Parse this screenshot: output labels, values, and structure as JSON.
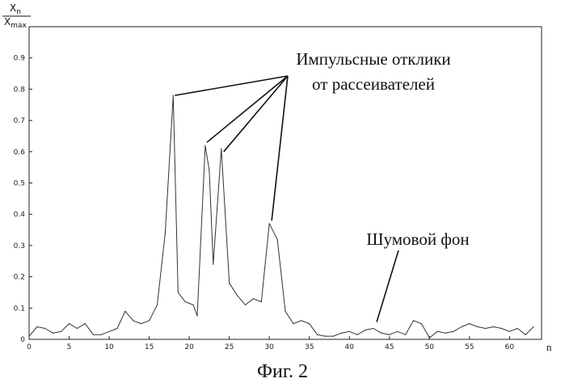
{
  "chart_data": {
    "type": "line",
    "title": "",
    "xlabel": "n",
    "ylabel_numerator": "X",
    "ylabel_numerator_sub": "n",
    "ylabel_denominator": "X",
    "ylabel_denominator_sub": "max",
    "xlim": [
      0,
      64
    ],
    "ylim": [
      0,
      1
    ],
    "grid": false,
    "x_ticks": [
      0,
      5,
      10,
      15,
      20,
      25,
      30,
      35,
      40,
      45,
      50,
      55,
      60
    ],
    "y_ticks": [
      0,
      0.1,
      0.2,
      0.3,
      0.4,
      0.5,
      0.6,
      0.7,
      0.8,
      0.9
    ],
    "series": [
      {
        "values": [
          [
            0,
            0.01
          ],
          [
            1,
            0.04
          ],
          [
            2,
            0.035
          ],
          [
            3,
            0.02
          ],
          [
            4,
            0.025
          ],
          [
            5,
            0.05
          ],
          [
            6,
            0.035
          ],
          [
            7,
            0.05
          ],
          [
            8,
            0.015
          ],
          [
            9,
            0.015
          ],
          [
            10,
            0.025
          ],
          [
            11,
            0.035
          ],
          [
            12,
            0.09
          ],
          [
            13,
            0.06
          ],
          [
            14,
            0.05
          ],
          [
            15,
            0.06
          ],
          [
            16,
            0.11
          ],
          [
            17,
            0.34
          ],
          [
            18,
            0.78
          ],
          [
            18.6,
            0.15
          ],
          [
            19.5,
            0.12
          ],
          [
            20.5,
            0.11
          ],
          [
            21,
            0.075
          ],
          [
            22,
            0.62
          ],
          [
            22.5,
            0.54
          ],
          [
            23,
            0.24
          ],
          [
            24,
            0.61
          ],
          [
            25,
            0.18
          ],
          [
            26,
            0.14
          ],
          [
            27,
            0.11
          ],
          [
            28,
            0.13
          ],
          [
            29,
            0.12
          ],
          [
            30,
            0.37
          ],
          [
            31,
            0.32
          ],
          [
            32,
            0.09
          ],
          [
            33,
            0.05
          ],
          [
            34,
            0.06
          ],
          [
            35,
            0.05
          ],
          [
            36,
            0.015
          ],
          [
            37,
            0.01
          ],
          [
            38,
            0.01
          ],
          [
            39,
            0.02
          ],
          [
            40,
            0.025
          ],
          [
            41,
            0.015
          ],
          [
            42,
            0.03
          ],
          [
            43,
            0.035
          ],
          [
            44,
            0.02
          ],
          [
            45,
            0.015
          ],
          [
            46,
            0.025
          ],
          [
            47,
            0.015
          ],
          [
            48,
            0.06
          ],
          [
            49,
            0.05
          ],
          [
            50,
            0.005
          ],
          [
            51,
            0.025
          ],
          [
            52,
            0.02
          ],
          [
            53,
            0.025
          ],
          [
            54,
            0.04
          ],
          [
            55,
            0.05
          ],
          [
            56,
            0.04
          ],
          [
            57,
            0.035
          ],
          [
            58,
            0.04
          ],
          [
            59,
            0.035
          ],
          [
            60,
            0.025
          ],
          [
            61,
            0.035
          ],
          [
            62,
            0.015
          ],
          [
            63,
            0.04
          ]
        ]
      }
    ],
    "annotations": [
      {
        "line1": "Импульсные отклики",
        "line2": "от рассеивателей",
        "targets": [
          [
            18.2,
            0.78
          ],
          [
            22.2,
            0.63
          ],
          [
            24.3,
            0.6
          ],
          [
            30.3,
            0.38
          ]
        ]
      },
      {
        "line1": "Шумовой фон",
        "targets": [
          [
            42,
            0.04
          ]
        ]
      }
    ]
  },
  "caption": "Фиг. 2"
}
